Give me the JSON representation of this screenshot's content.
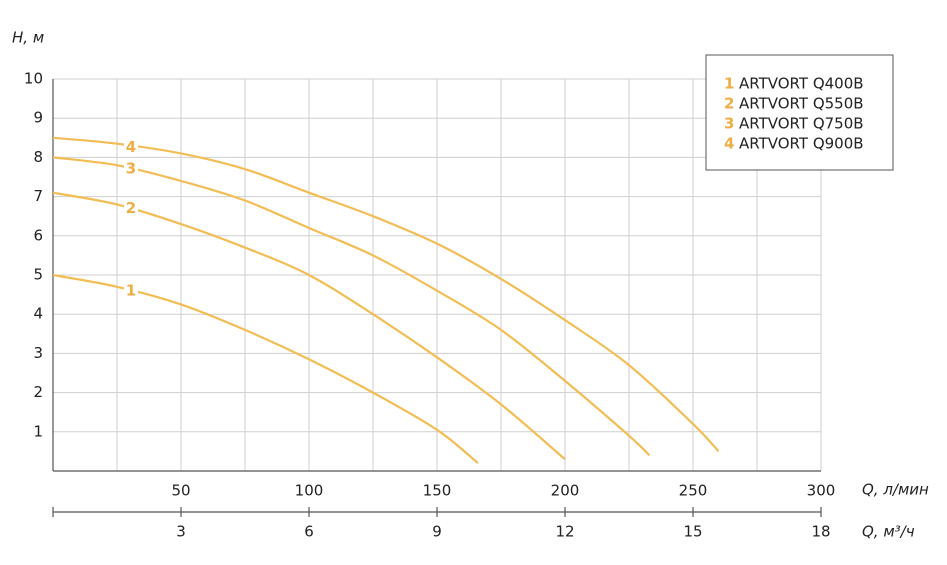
{
  "chart_data": {
    "type": "line",
    "ylabel": "H, м",
    "xlabel": "Q, л/мин",
    "x2label": "Q, м³/ч",
    "xlim": [
      0,
      300
    ],
    "xticks": [
      50,
      100,
      150,
      200,
      250,
      300
    ],
    "xminor_ticks": [
      25,
      75,
      125,
      175,
      225,
      275
    ],
    "x2lim": [
      0,
      18
    ],
    "x2ticks": [
      3,
      6,
      9,
      12,
      15,
      18
    ],
    "ylim": [
      0,
      10
    ],
    "yticks": [
      1,
      2,
      3,
      4,
      5,
      6,
      7,
      8,
      9,
      10
    ],
    "grid": true,
    "legend": "upper right",
    "color": "#f2bd55",
    "series": [
      {
        "label": "1",
        "name": "ARTVORT Q400B",
        "x": [
          0,
          25,
          50,
          75,
          100,
          125,
          150,
          166
        ],
        "values": [
          5.0,
          4.7,
          4.25,
          3.6,
          2.85,
          2.0,
          1.05,
          0.2
        ]
      },
      {
        "label": "2",
        "name": "ARTVORT Q550B",
        "x": [
          0,
          25,
          50,
          75,
          100,
          125,
          150,
          175,
          200
        ],
        "values": [
          7.1,
          6.8,
          6.3,
          5.7,
          5.0,
          4.0,
          2.9,
          1.7,
          0.3
        ]
      },
      {
        "label": "3",
        "name": "ARTVORT Q750B",
        "x": [
          0,
          25,
          50,
          75,
          100,
          125,
          150,
          175,
          200,
          225,
          233
        ],
        "values": [
          8.0,
          7.8,
          7.4,
          6.9,
          6.2,
          5.5,
          4.6,
          3.6,
          2.3,
          0.9,
          0.4
        ]
      },
      {
        "label": "4",
        "name": "ARTVORT Q900B",
        "x": [
          0,
          25,
          50,
          75,
          100,
          125,
          150,
          175,
          200,
          225,
          250,
          260
        ],
        "values": [
          8.5,
          8.35,
          8.1,
          7.7,
          7.1,
          6.5,
          5.8,
          4.9,
          3.85,
          2.7,
          1.2,
          0.5
        ]
      }
    ]
  }
}
